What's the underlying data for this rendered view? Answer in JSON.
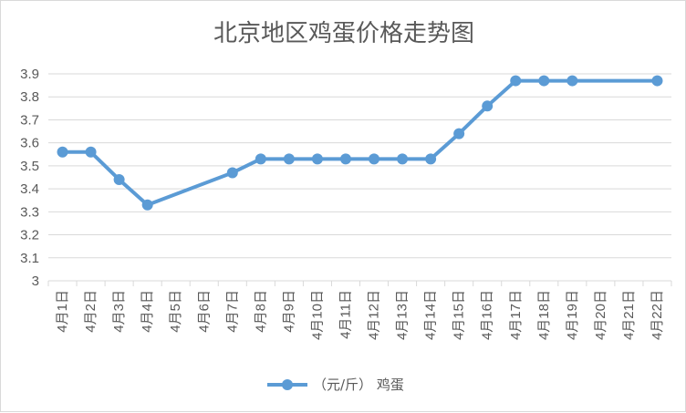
{
  "chart_data": {
    "type": "line",
    "title": "北京地区鸡蛋价格走势图",
    "categories": [
      "4月1日",
      "4月2日",
      "4月3日",
      "4月4日",
      "4月5日",
      "4月6日",
      "4月7日",
      "4月8日",
      "4月9日",
      "4月10日",
      "4月11日",
      "4月12日",
      "4月13日",
      "4月14日",
      "4月15日",
      "4月16日",
      "4月17日",
      "4月18日",
      "4月19日",
      "4月20日",
      "4月21日",
      "4月22日"
    ],
    "series": [
      {
        "name": "（元/斤）  鸡蛋",
        "color": "#5b9bd5",
        "values": [
          3.56,
          3.56,
          3.44,
          3.33,
          null,
          null,
          3.47,
          3.53,
          3.53,
          3.53,
          3.53,
          3.53,
          3.53,
          3.53,
          3.64,
          3.76,
          3.87,
          3.87,
          3.87,
          null,
          null,
          3.87
        ]
      }
    ],
    "ylim": [
      3,
      3.9
    ],
    "yticks": [
      "3",
      "3.1",
      "3.2",
      "3.3",
      "3.4",
      "3.5",
      "3.6",
      "3.7",
      "3.8",
      "3.9"
    ],
    "grid": true,
    "legend_position": "bottom",
    "gridline_color": "#d9d9d9",
    "text_color": "#595959"
  }
}
